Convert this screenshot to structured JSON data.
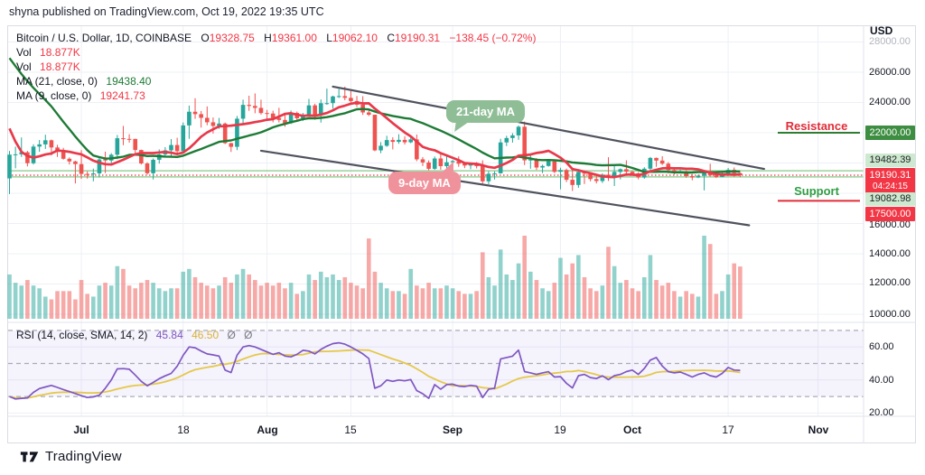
{
  "caption": "shyna published on TradingView.com, Oct 19, 2022 19:35 UTC",
  "legend": {
    "symbol": "Bitcoin / U.S. Dollar, 1D, COINBASE",
    "ohlc": [
      {
        "k": "O",
        "v": "19328.75"
      },
      {
        "k": "H",
        "v": "19361.00"
      },
      {
        "k": "L",
        "v": "19062.10"
      },
      {
        "k": "C",
        "v": "19190.31"
      }
    ],
    "change": "−138.45 (−0.72%)",
    "vol_label": "Vol",
    "vol1": "18.877K",
    "vol2": "18.877K",
    "ma21_label": "MA (21, close, 0)",
    "ma21_value": "19438.40",
    "ma9_label": "MA (9, close, 0)",
    "ma9_value": "19241.73"
  },
  "rsi_legend": {
    "label": "RSI (14, close, SMA, 14, 2)",
    "value": "45.84",
    "sma_value": "46.50",
    "hide_icon": "Ø"
  },
  "annotations": {
    "resistance": "Resistance",
    "support": "Support",
    "ma21_bubble": "21-day MA",
    "ma9_bubble": "9-day MA"
  },
  "price_axis": {
    "currency": "USD",
    "badge_22000": "22000.00",
    "badge_upper": "19482.39",
    "badge_last_price": "19190.31",
    "badge_countdown": "04:24:15",
    "badge_lower": "19082.98",
    "badge_17500": "17500.00"
  },
  "footer": {
    "brand": "TradingView"
  },
  "colors": {
    "up": "#26a69a",
    "down": "#ef5350",
    "ma21": "#1e7b36",
    "ma9": "#e8394a",
    "rsi": "#7e57c2",
    "rsi_sma": "#e5c84b",
    "last_price": "#f23645",
    "level_green": "#87c98b",
    "resistance": "#e12d39",
    "support": "#2f9e44",
    "channel": "#50535e"
  },
  "chart_data": {
    "type": "candlestick",
    "title": "Bitcoin / U.S. Dollar, 1D, COINBASE",
    "start_date": "2022-06-19",
    "end_date": "2022-10-19",
    "price_ylim": [
      9500,
      29100
    ],
    "rsi_ylim": [
      15,
      75
    ],
    "grid_prices": [
      28000,
      26000,
      24000,
      22000,
      20000,
      18000,
      16000,
      14000,
      12000,
      10000
    ],
    "price_ticks": [
      {
        "label": "28000.00",
        "price": 28000,
        "dim": true
      },
      {
        "label": "26000.00",
        "price": 26000
      },
      {
        "label": "24000.00",
        "price": 24000
      },
      {
        "label": "16000.00",
        "price": 16000
      },
      {
        "label": "14000.00",
        "price": 14000
      },
      {
        "label": "12000.00",
        "price": 12000
      },
      {
        "label": "10000.00",
        "price": 10000
      }
    ],
    "rsi_ticks": [
      {
        "label": "60.00",
        "value": 60
      },
      {
        "label": "40.00",
        "value": 40
      },
      {
        "label": "20.00",
        "value": 20
      }
    ],
    "rsi_bands": [
      70,
      50,
      30
    ],
    "time_ticks": [
      {
        "label": "Jul",
        "day": 12,
        "bold": true
      },
      {
        "label": "18",
        "day": 29
      },
      {
        "label": "Aug",
        "day": 43,
        "bold": true
      },
      {
        "label": "15",
        "day": 57
      },
      {
        "label": "Sep",
        "day": 74,
        "bold": true
      },
      {
        "label": "19",
        "day": 92
      },
      {
        "label": "Oct",
        "day": 104,
        "bold": true
      },
      {
        "label": "17",
        "day": 120
      },
      {
        "label": "Nov",
        "day": 135,
        "bold": true
      }
    ],
    "levels": [
      {
        "price": 19482.39,
        "color": "#87c98b",
        "style": "solid",
        "scope": "chart"
      },
      {
        "price": 19190.31,
        "color": "#f23645",
        "style": "dotted",
        "scope": "chart"
      },
      {
        "price": 19082.98,
        "color": "#87c98b",
        "style": "solid",
        "scope": "chart"
      },
      {
        "price": 22000,
        "color": "#2e7d32",
        "style": "solid",
        "scope": "margin"
      },
      {
        "price": 17500,
        "color": "#e12d39",
        "style": "solid",
        "scope": "margin"
      }
    ],
    "trendlines": [
      {
        "d1": 54,
        "p1": 25050,
        "d2": 126,
        "p2": 19610
      },
      {
        "d1": 42,
        "p1": 20810,
        "d2": 123.5,
        "p2": 15880
      }
    ],
    "ma_periods": [
      21,
      9
    ],
    "rsi_sma_period": 14,
    "pre_closes": [
      31730,
      31790,
      29800,
      30450,
      29700,
      29860,
      29910,
      31370,
      31150,
      30200,
      30110,
      29090,
      28360,
      26760,
      22480,
      22130,
      20380,
      20470,
      20380,
      19010
    ],
    "candles": [
      [
        18981,
        20800,
        17950,
        20553
      ],
      [
        20553,
        21080,
        19650,
        20573
      ],
      [
        20573,
        21690,
        20400,
        20710
      ],
      [
        20710,
        20800,
        19775,
        19987
      ],
      [
        19987,
        21235,
        19900,
        21085
      ],
      [
        21085,
        21520,
        20740,
        21231
      ],
      [
        21231,
        21870,
        20930,
        21502
      ],
      [
        21502,
        21550,
        20500,
        21027
      ],
      [
        21027,
        21200,
        20400,
        20735
      ],
      [
        20735,
        21000,
        20220,
        20280
      ],
      [
        20280,
        20370,
        19900,
        20104
      ],
      [
        20104,
        20150,
        18650,
        19926
      ],
      [
        19926,
        20850,
        18950,
        19279
      ],
      [
        19279,
        19450,
        18970,
        19252
      ],
      [
        19252,
        19630,
        18790,
        19315
      ],
      [
        19315,
        20350,
        19050,
        20235
      ],
      [
        20235,
        20750,
        19330,
        20165
      ],
      [
        20165,
        20650,
        19850,
        20548
      ],
      [
        20548,
        21850,
        20250,
        21637
      ],
      [
        21637,
        22450,
        21180,
        21592
      ],
      [
        21592,
        21900,
        21350,
        21591
      ],
      [
        21591,
        21600,
        20660,
        20860
      ],
      [
        20860,
        20880,
        19900,
        19970
      ],
      [
        19970,
        20050,
        19240,
        19323
      ],
      [
        19323,
        20300,
        18910,
        20212
      ],
      [
        20212,
        20900,
        19960,
        20569
      ],
      [
        20569,
        21050,
        20400,
        20836
      ],
      [
        20836,
        21580,
        20470,
        21190
      ],
      [
        21190,
        21670,
        20550,
        20781
      ],
      [
        20781,
        22680,
        20760,
        22485
      ],
      [
        22485,
        23800,
        21600,
        23389
      ],
      [
        23389,
        24280,
        22920,
        23231
      ],
      [
        23231,
        23440,
        22340,
        22987
      ],
      [
        22987,
        23740,
        22500,
        22691
      ],
      [
        22691,
        23010,
        21950,
        22450
      ],
      [
        22450,
        22980,
        22260,
        22609
      ],
      [
        22609,
        22670,
        21250,
        21311
      ],
      [
        21311,
        21340,
        20730,
        21069
      ],
      [
        21069,
        23110,
        20850,
        22930
      ],
      [
        22930,
        24190,
        22600,
        23843
      ],
      [
        23843,
        24450,
        23450,
        23773
      ],
      [
        23773,
        24600,
        23290,
        23644
      ],
      [
        23644,
        24190,
        23200,
        23303
      ],
      [
        23303,
        23510,
        22860,
        23271
      ],
      [
        23271,
        23460,
        22690,
        22978
      ],
      [
        22978,
        23650,
        22680,
        22846
      ],
      [
        22846,
        23220,
        22400,
        22630
      ],
      [
        22630,
        23470,
        22580,
        23312
      ],
      [
        23312,
        23400,
        22830,
        22954
      ],
      [
        22954,
        23310,
        22780,
        23175
      ],
      [
        23175,
        24240,
        23130,
        23810
      ],
      [
        23810,
        23920,
        22860,
        23150
      ],
      [
        23150,
        24200,
        22670,
        23954
      ],
      [
        23954,
        24920,
        23850,
        23957
      ],
      [
        23957,
        24450,
        23600,
        24402
      ],
      [
        24402,
        24890,
        24300,
        24424
      ],
      [
        24424,
        25050,
        24150,
        24305
      ],
      [
        24305,
        24850,
        23900,
        24095
      ],
      [
        24095,
        24430,
        23700,
        23854
      ],
      [
        23854,
        24420,
        23180,
        23342
      ],
      [
        23342,
        23590,
        23100,
        23191
      ],
      [
        23191,
        23200,
        20780,
        20834
      ],
      [
        20834,
        21380,
        20650,
        21139
      ],
      [
        21139,
        21800,
        21070,
        21516
      ],
      [
        21516,
        21700,
        20900,
        21398
      ],
      [
        21398,
        21900,
        21270,
        21529
      ],
      [
        21529,
        21770,
        21220,
        21369
      ],
      [
        21369,
        21820,
        21310,
        21559
      ],
      [
        21559,
        21880,
        20120,
        20241
      ],
      [
        20241,
        20390,
        19800,
        20038
      ],
      [
        20038,
        20170,
        19520,
        19616
      ],
      [
        19616,
        20430,
        19550,
        20298
      ],
      [
        20298,
        20580,
        19560,
        19793
      ],
      [
        19793,
        20480,
        19560,
        20050
      ],
      [
        20050,
        20200,
        19580,
        20127
      ],
      [
        20127,
        20440,
        19750,
        19952
      ],
      [
        19952,
        20050,
        19660,
        19832
      ],
      [
        19832,
        20030,
        19590,
        19986
      ],
      [
        19986,
        20060,
        19640,
        19794
      ],
      [
        19794,
        20180,
        18540,
        18790
      ],
      [
        18790,
        19460,
        18600,
        19290
      ],
      [
        19290,
        19450,
        18910,
        19320
      ],
      [
        19320,
        21600,
        19300,
        21360
      ],
      [
        21360,
        21800,
        21120,
        21650
      ],
      [
        21650,
        21970,
        21350,
        21826
      ],
      [
        21826,
        22480,
        21530,
        22395
      ],
      [
        22395,
        22740,
        19860,
        20173
      ],
      [
        20173,
        20540,
        19620,
        20226
      ],
      [
        20226,
        20330,
        19540,
        19701
      ],
      [
        19701,
        19890,
        19330,
        19804
      ],
      [
        19804,
        20180,
        19760,
        20113
      ],
      [
        20113,
        20180,
        19330,
        19416
      ],
      [
        19416,
        19690,
        18260,
        19537
      ],
      [
        19537,
        19630,
        18740,
        18890
      ],
      [
        18890,
        19690,
        18150,
        18547
      ],
      [
        18547,
        19500,
        18360,
        19413
      ],
      [
        19413,
        19460,
        18610,
        19297
      ],
      [
        19297,
        19320,
        18790,
        18936
      ],
      [
        18936,
        19180,
        18650,
        18808
      ],
      [
        18808,
        19320,
        18680,
        19227
      ],
      [
        19227,
        20380,
        18810,
        19079
      ],
      [
        19079,
        19790,
        18480,
        19412
      ],
      [
        19412,
        19640,
        18920,
        19590
      ],
      [
        19590,
        20180,
        19160,
        19423
      ],
      [
        19423,
        19480,
        19160,
        19312
      ],
      [
        19312,
        19390,
        18920,
        19044
      ],
      [
        19044,
        19720,
        18960,
        19623
      ],
      [
        19623,
        20400,
        19520,
        20336
      ],
      [
        20336,
        20360,
        19750,
        20160
      ],
      [
        20160,
        20450,
        19870,
        19955
      ],
      [
        19955,
        20060,
        19320,
        19533
      ],
      [
        19533,
        19630,
        19240,
        19417
      ],
      [
        19417,
        19560,
        19320,
        19441
      ],
      [
        19441,
        19525,
        19020,
        19131
      ],
      [
        19131,
        19270,
        18860,
        19043
      ],
      [
        19043,
        19230,
        19000,
        19157
      ],
      [
        19157,
        19510,
        18190,
        19377
      ],
      [
        19377,
        19950,
        19100,
        19176
      ],
      [
        19176,
        19220,
        19010,
        19067
      ],
      [
        19067,
        19420,
        19060,
        19260
      ],
      [
        19260,
        19670,
        19150,
        19550
      ],
      [
        19550,
        19700,
        19090,
        19329
      ],
      [
        19328.75,
        19361,
        19062.1,
        19190.31
      ]
    ],
    "volumes": [
      16,
      13,
      12,
      14,
      12,
      11,
      8,
      7,
      10,
      10,
      10,
      7,
      14,
      9,
      8,
      12,
      13,
      12,
      19,
      18,
      12,
      11,
      13,
      14,
      13,
      11,
      10,
      11,
      11,
      17,
      18,
      15,
      13,
      12,
      11,
      12,
      15,
      13,
      16,
      18,
      16,
      14,
      12,
      13,
      12,
      13,
      11,
      13,
      9,
      10,
      16,
      14,
      17,
      15,
      16,
      14,
      15,
      13,
      12,
      11,
      29,
      17,
      13,
      11,
      10,
      10,
      9,
      18,
      12,
      11,
      13,
      11,
      11,
      12,
      11,
      10,
      9,
      9,
      10,
      24,
      15,
      12,
      25,
      16,
      14,
      20,
      30,
      17,
      14,
      11,
      10,
      13,
      22,
      16,
      20,
      23,
      15,
      11,
      10,
      12,
      26,
      19,
      13,
      14,
      11,
      10,
      15,
      23,
      14,
      12,
      13,
      10,
      8,
      10,
      9,
      8,
      30,
      27,
      9,
      10,
      16,
      20,
      18.877
    ],
    "rsi": [
      30,
      28.5,
      28.9,
      29.2,
      32.5,
      34.8,
      35.8,
      36.7,
      35.5,
      34.2,
      33,
      31.8,
      30.5,
      29.4,
      29.8,
      30.8,
      35,
      40,
      46.7,
      46.9,
      46.5,
      43,
      39.2,
      36.5,
      38.5,
      40.8,
      42.5,
      44,
      48.3,
      55,
      60,
      59.5,
      57.5,
      55.8,
      55.2,
      54.5,
      46,
      44.5,
      55,
      60,
      60.8,
      60,
      58.5,
      57,
      55.5,
      56.5,
      54.5,
      54,
      55.5,
      58,
      57.5,
      55.8,
      58.5,
      60.5,
      62,
      62.5,
      61.7,
      60,
      58,
      55.8,
      53,
      35,
      36.5,
      40,
      39.2,
      40,
      39.5,
      40.3,
      33.6,
      31.7,
      28.9,
      37.2,
      34.4,
      37.2,
      37.5,
      36.3,
      36,
      36.8,
      36.3,
      29.4,
      34.4,
      35,
      52.8,
      53.6,
      54.4,
      58.1,
      45.1,
      44.3,
      43.4,
      44.3,
      45,
      41.8,
      42,
      38,
      35.2,
      42.6,
      43.4,
      41.5,
      40.9,
      42.5,
      40.2,
      42.6,
      43.4,
      45.1,
      46,
      43.4,
      47,
      52,
      53.6,
      48.4,
      45.1,
      44.3,
      44.8,
      43.4,
      41.8,
      43.4,
      44.3,
      42.6,
      41.8,
      44,
      47.6,
      46,
      45.84
    ]
  }
}
